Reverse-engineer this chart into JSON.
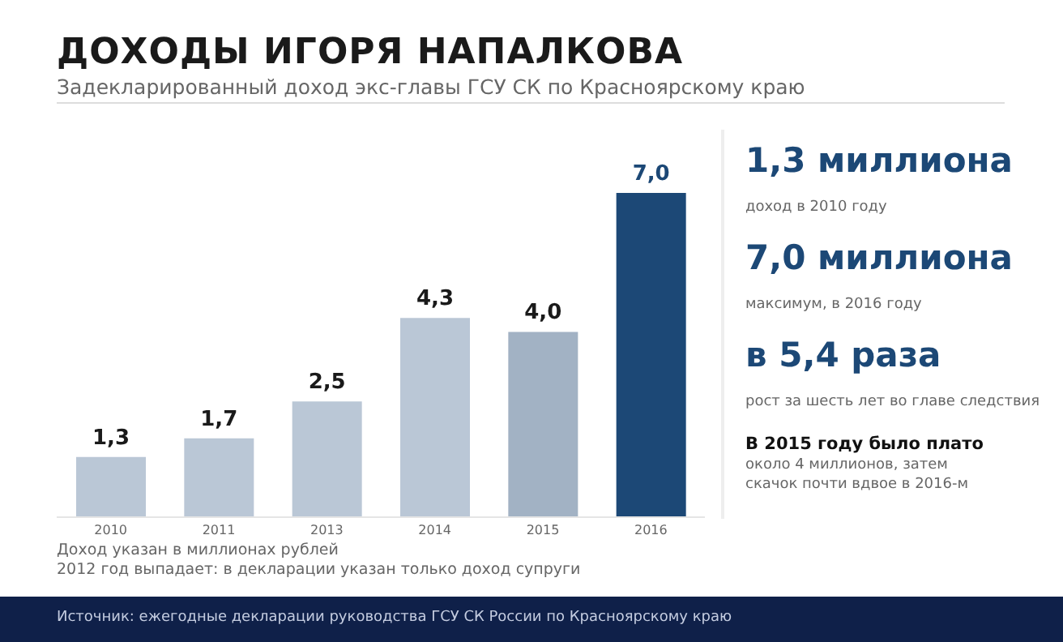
{
  "chart_data": [
    {
      "type": "bar",
      "title": "ДОХОДЫ ИГОРЯ НАПАЛКОВА",
      "subtitle": "Задекларированный доход экс-главы ГСУ СК по Красноярскому краю",
      "categories": [
        "2010",
        "2011",
        "2013",
        "2014",
        "2015",
        "2016"
      ],
      "values": [
        1.3,
        1.7,
        2.5,
        4.3,
        4.0,
        7.0
      ],
      "colors": [
        "#bac7d6",
        "#bac7d6",
        "#bac7d6",
        "#bac7d6",
        "#a2b2c4",
        "#1c4876"
      ],
      "value_labels": [
        "1,3",
        "1,7",
        "2,5",
        "4,3",
        "4,0",
        "7,0"
      ],
      "ylim": [
        0,
        7
      ],
      "tick_labels": "x",
      "annotations": [
        "Доход указан в миллионах рублей",
        "2012 год выпадает: в декларации указан только доход супруги",
        "Источник: ежегодные декларации руководства ГСУ СК России по Красноярскому краю"
      ]
    },
    {
      "type": "other",
      "annotations": [
        "1,3 миллиона",
        "доход в 2010 году",
        "7,0 миллиона",
        "максимум, в 2016 году",
        "в 5,4 раза",
        "рост за шесть лет во главе следствия",
        "В 2015 году было плато",
        "около 4 миллионов, затем скачок почти вдвое в 2016-м"
      ]
    }
  ]
}
